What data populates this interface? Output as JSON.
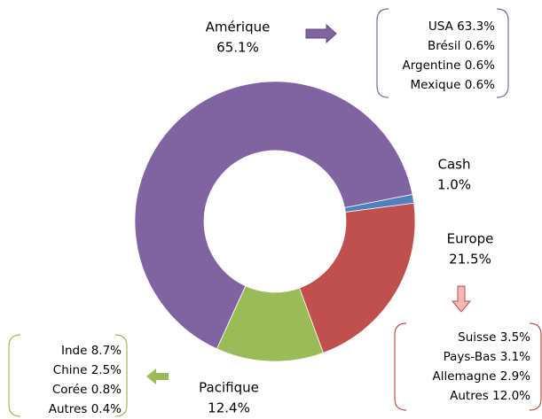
{
  "chart_data": {
    "type": "donut",
    "categories": [
      "Amérique",
      "Cash",
      "Europe",
      "Pacifique"
    ],
    "values": [
      65.1,
      1.0,
      21.5,
      12.4
    ],
    "value_labels": [
      "65.1%",
      "1.0%",
      "21.5%",
      "12.4%"
    ],
    "colors": [
      "#8064a2",
      "#4f81bd",
      "#c0504d",
      "#9bbb59"
    ],
    "breakdowns": [
      {
        "region": "Amérique",
        "items": [
          [
            "USA",
            "63.3%"
          ],
          [
            "Brésil",
            "0.6%"
          ],
          [
            "Argentine",
            "0.6%"
          ],
          [
            "Mexique",
            "0.6%"
          ]
        ]
      },
      {
        "region": "Europe",
        "items": [
          [
            "Suisse",
            "3.5%"
          ],
          [
            "Pays-Bas",
            "3.1%"
          ],
          [
            "Allemagne",
            "2.9%"
          ],
          [
            "Autres",
            "12.0%"
          ]
        ]
      },
      {
        "region": "Pacifique",
        "items": [
          [
            "Inde",
            "8.7%"
          ],
          [
            "Chine",
            "2.5%"
          ],
          [
            "Corée",
            "0.8%"
          ],
          [
            "Autres",
            "0.4%"
          ]
        ]
      }
    ]
  }
}
